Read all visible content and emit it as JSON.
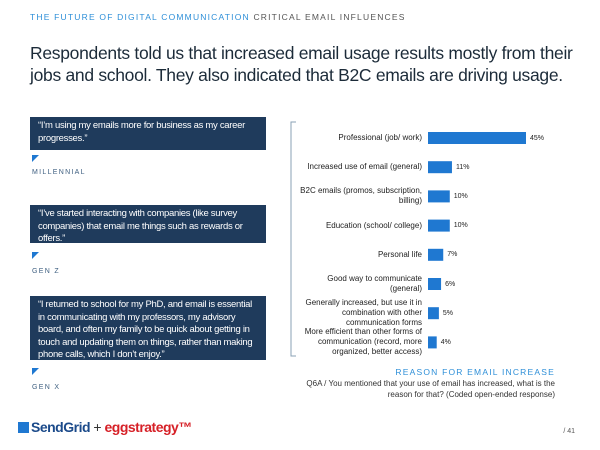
{
  "header": {
    "section": "THE FUTURE OF DIGITAL COMMUNICATION",
    "subsection": "CRITICAL EMAIL INFLUENCES"
  },
  "headline": "Respondents told us that increased email usage results mostly from their jobs and school. They also indicated that B2C emails are driving usage.",
  "quotes": [
    {
      "text": "“I’m using my emails more for business as my career progresses.”",
      "segment": "MILLENNIAL"
    },
    {
      "text": "“I’ve started interacting with companies (like survey companies) that email me things such as rewards or offers.”",
      "segment": "GEN Z"
    },
    {
      "text": "“I returned to school for my PhD, and email is essential in communicating with my professors, my advisory board, and often my family to be quick about getting in touch and updating them on things, rather than making phone calls, which I don’t enjoy.”",
      "segment": "GEN X"
    }
  ],
  "chart_data": {
    "type": "bar",
    "orientation": "horizontal",
    "title": "REASON FOR EMAIL INCREASE",
    "categories": [
      "Professional (job/ work)",
      "Increased use of email (general)",
      "B2C emails (promos, subscription, billing)",
      "Education (school/ college)",
      "Personal life",
      "Good way to communicate (general)",
      "Generally increased, but use it in combination with other communication forms",
      "More efficient than other forms of communication (record, more organized, better access)"
    ],
    "values": [
      45,
      11,
      10,
      10,
      7,
      6,
      5,
      4
    ],
    "value_labels": [
      "45%",
      "11%",
      "10%",
      "10%",
      "7%",
      "6%",
      "5%",
      "4%"
    ],
    "color": "#1f78d1"
  },
  "footnote": "Q6A / You mentioned that your use of email has increased, what is the reason for that? (Coded open-ended response)",
  "logos": [
    "SendGrid",
    "+",
    "eggstrategy™"
  ],
  "page": "/ 41"
}
